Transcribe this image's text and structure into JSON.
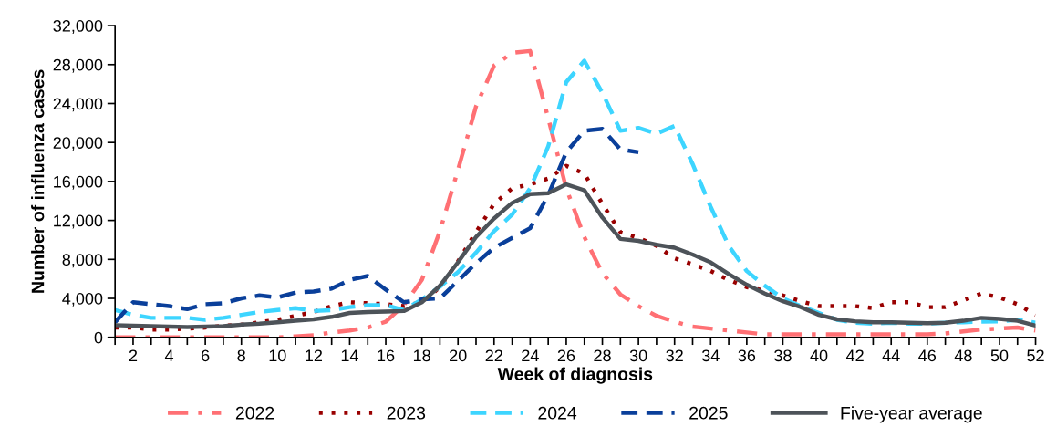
{
  "chart_data": {
    "type": "line",
    "xlabel": "Week of diagnosis",
    "ylabel": "Number of influenza cases",
    "x": [
      1,
      2,
      3,
      4,
      5,
      6,
      7,
      8,
      9,
      10,
      11,
      12,
      13,
      14,
      15,
      16,
      17,
      18,
      19,
      20,
      21,
      22,
      23,
      24,
      25,
      26,
      27,
      28,
      29,
      30,
      31,
      32,
      33,
      34,
      35,
      36,
      37,
      38,
      39,
      40,
      41,
      42,
      43,
      44,
      45,
      46,
      47,
      48,
      49,
      50,
      51,
      52
    ],
    "xlim": [
      1,
      52
    ],
    "xticks": [
      {
        "value": 1,
        "label": null
      },
      2,
      {
        "value": 3,
        "label": null
      },
      4,
      {
        "value": 5,
        "label": null
      },
      6,
      {
        "value": 7,
        "label": null
      },
      8,
      {
        "value": 9,
        "label": null
      },
      10,
      {
        "value": 11,
        "label": null
      },
      12,
      {
        "value": 13,
        "label": null
      },
      14,
      {
        "value": 15,
        "label": null
      },
      16,
      {
        "value": 17,
        "label": null
      },
      18,
      {
        "value": 19,
        "label": null
      },
      20,
      {
        "value": 21,
        "label": null
      },
      22,
      {
        "value": 23,
        "label": null
      },
      24,
      {
        "value": 25,
        "label": null
      },
      26,
      {
        "value": 27,
        "label": null
      },
      28,
      {
        "value": 29,
        "label": null
      },
      30,
      {
        "value": 31,
        "label": null
      },
      32,
      {
        "value": 33,
        "label": null
      },
      34,
      {
        "value": 35,
        "label": null
      },
      36,
      {
        "value": 37,
        "label": null
      },
      38,
      {
        "value": 39,
        "label": null
      },
      40,
      {
        "value": 41,
        "label": null
      },
      42,
      {
        "value": 43,
        "label": null
      },
      44,
      {
        "value": 45,
        "label": null
      },
      46,
      {
        "value": 47,
        "label": null
      },
      48,
      {
        "value": 49,
        "label": null
      },
      50,
      {
        "value": 51,
        "label": null
      },
      52
    ],
    "ylim": [
      0,
      32000
    ],
    "yticks": [
      0,
      {
        "value": 4000,
        "label": "4,000"
      },
      {
        "value": 8000,
        "label": "8,000"
      },
      {
        "value": 12000,
        "label": "12,000"
      },
      {
        "value": 16000,
        "label": "16,000"
      },
      {
        "value": 20000,
        "label": "20,000"
      },
      {
        "value": 24000,
        "label": "24,000"
      },
      {
        "value": 28000,
        "label": "28,000"
      },
      {
        "value": 32000,
        "label": "32,000"
      }
    ],
    "grid": false,
    "legend": "bottom",
    "marker": "none",
    "series": [
      {
        "name": "2022",
        "color": "#ff7074",
        "line_style": "dashdot",
        "values": [
          0,
          0,
          0,
          0,
          0,
          0,
          0,
          0,
          0,
          0,
          100,
          200,
          500,
          700,
          1000,
          1600,
          3300,
          5900,
          10900,
          17200,
          23700,
          27900,
          29200,
          29400,
          22500,
          15300,
          10300,
          6600,
          4400,
          3200,
          2200,
          1600,
          1100,
          900,
          700,
          500,
          300,
          300,
          300,
          300,
          300,
          300,
          300,
          300,
          300,
          300,
          400,
          600,
          800,
          900,
          1000,
          700
        ]
      },
      {
        "name": "2023",
        "color": "#990000",
        "line_style": "dotted",
        "values": [
          1000,
          1000,
          800,
          800,
          900,
          1000,
          1200,
          1300,
          1550,
          1800,
          2200,
          2600,
          3200,
          3600,
          3500,
          3400,
          3200,
          3600,
          5150,
          7800,
          10800,
          13700,
          15300,
          15700,
          16300,
          17600,
          16800,
          13700,
          10800,
          10200,
          9400,
          8100,
          7500,
          6800,
          5900,
          5150,
          4800,
          4300,
          3700,
          3200,
          3200,
          3200,
          3000,
          3600,
          3600,
          3100,
          3100,
          3800,
          4500,
          4100,
          3400,
          2300
        ]
      },
      {
        "name": "2024",
        "color": "#3dd5ff",
        "line_style": "dashed",
        "values": [
          2800,
          2300,
          2000,
          2000,
          2000,
          1800,
          2000,
          2300,
          2600,
          2800,
          3000,
          2700,
          2800,
          3100,
          3300,
          3300,
          2800,
          3900,
          5200,
          6700,
          8700,
          10900,
          12600,
          15300,
          19600,
          26200,
          28400,
          25100,
          21200,
          21500,
          20900,
          21700,
          17800,
          13400,
          9400,
          6800,
          5300,
          4000,
          3200,
          2500,
          1800,
          1500,
          1400,
          1500,
          1400,
          1400,
          1500,
          1550,
          1600,
          1650,
          1800,
          1500
        ]
      },
      {
        "name": "2025",
        "color": "#0a3f9a",
        "line_style": "dashed",
        "values": [
          1550,
          3600,
          3400,
          3200,
          2900,
          3400,
          3500,
          4000,
          4300,
          4100,
          4600,
          4700,
          5000,
          5900,
          6300,
          4900,
          3600,
          3900,
          4000,
          5800,
          7600,
          9200,
          10200,
          11200,
          14600,
          19000,
          21200,
          21400,
          19300,
          19000,
          null,
          null,
          null,
          null,
          null,
          null,
          null,
          null,
          null,
          null,
          null,
          null,
          null,
          null,
          null,
          null,
          null,
          null,
          null,
          null,
          null,
          null
        ]
      },
      {
        "name": "Five-year average",
        "color": "#4d5359",
        "line_style": "solid",
        "values": [
          1250,
          1200,
          1150,
          1100,
          1050,
          1100,
          1150,
          1300,
          1400,
          1550,
          1700,
          1850,
          2100,
          2500,
          2600,
          2650,
          2700,
          3600,
          5300,
          7700,
          10300,
          12200,
          13800,
          14700,
          14800,
          15700,
          15100,
          12300,
          10100,
          9900,
          9500,
          9200,
          8500,
          7700,
          6500,
          5400,
          4500,
          3700,
          3100,
          2300,
          1850,
          1650,
          1550,
          1550,
          1500,
          1450,
          1500,
          1700,
          2000,
          1900,
          1700,
          1200
        ]
      }
    ]
  }
}
